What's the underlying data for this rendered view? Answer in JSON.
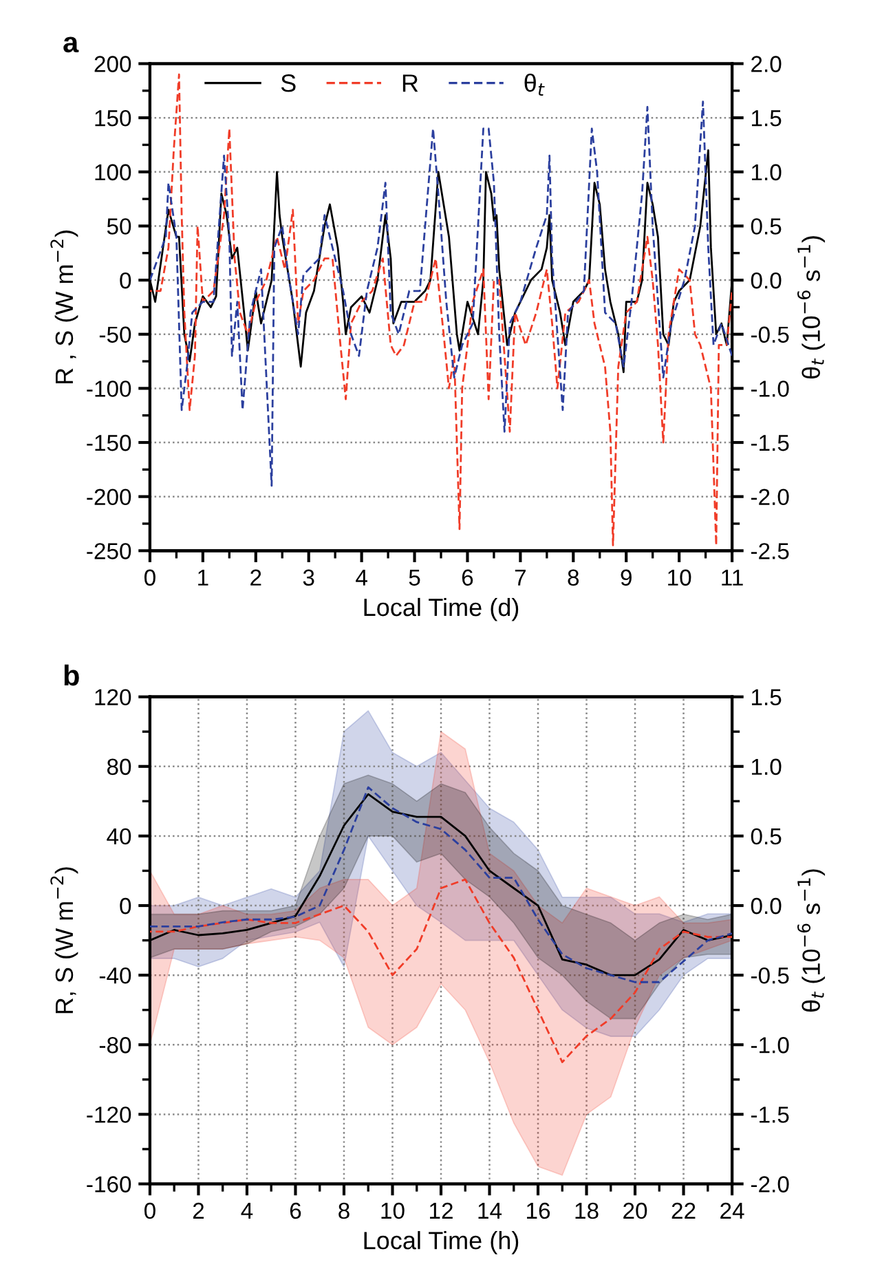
{
  "chart_data": [
    {
      "type": "line",
      "title": "a",
      "xlabel": "Local Time (d)",
      "ylabel": "R , S (W m$^{−2}$)",
      "y2label": "θ$_{t}$ (10$^{−6}$ s$^{−1}$)",
      "xlim": [
        0,
        11
      ],
      "xticks": [
        0,
        1,
        2,
        3,
        4,
        5,
        6,
        7,
        8,
        9,
        10,
        11
      ],
      "ylim": [
        -250,
        200
      ],
      "yticks": [
        -250,
        -200,
        -150,
        -100,
        -50,
        0,
        50,
        100,
        150,
        200
      ],
      "y2lim": [
        -2.5,
        2.0
      ],
      "y2ticks": [
        -2.5,
        {
          "value": -2,
          "label": "-2.0"
        },
        -1.5,
        {
          "value": -1,
          "label": "-1.0"
        },
        -0.5,
        {
          "value": 0,
          "label": "0.0"
        },
        0.5,
        {
          "value": 1,
          "label": "1.0"
        },
        1.5,
        {
          "value": 2,
          "label": "2.0"
        }
      ],
      "grid": "y",
      "legend": "top left",
      "marker": "none",
      "series": [
        {
          "name": "S",
          "color": "#000000",
          "line_style": "solid",
          "x": [
            0,
            0.1,
            0.35,
            0.5,
            0.55,
            0.65,
            0.75,
            0.85,
            1.0,
            1.15,
            1.25,
            1.35,
            1.45,
            1.55,
            1.65,
            1.8,
            1.85,
            2.0,
            2.1,
            2.2,
            2.3,
            2.35,
            2.4,
            2.45,
            2.5,
            2.6,
            2.7,
            2.8,
            2.85,
            2.95,
            3.1,
            3.3,
            3.4,
            3.55,
            3.65,
            3.7,
            3.8,
            4.0,
            4.15,
            4.3,
            4.45,
            4.55,
            4.6,
            4.75,
            5.0,
            5.2,
            5.3,
            5.45,
            5.55,
            5.65,
            5.8,
            5.85,
            6.0,
            6.2,
            6.3,
            6.35,
            6.45,
            6.5,
            6.55,
            6.6,
            6.75,
            6.9,
            7.0,
            7.2,
            7.4,
            7.5,
            7.55,
            7.6,
            7.75,
            7.85,
            8.0,
            8.2,
            8.3,
            8.4,
            8.5,
            8.6,
            8.7,
            8.85,
            8.95,
            9.0,
            9.2,
            9.3,
            9.4,
            9.5,
            9.6,
            9.7,
            9.8,
            9.9,
            10.0,
            10.2,
            10.4,
            10.55,
            10.6,
            10.7,
            10.8,
            10.9,
            11.0
          ],
          "values": [
            0,
            -20,
            65,
            40,
            40,
            -50,
            -75,
            -40,
            -15,
            -25,
            -15,
            80,
            60,
            20,
            30,
            -40,
            -65,
            -10,
            -40,
            -20,
            0,
            50,
            100,
            60,
            40,
            10,
            -20,
            -60,
            -80,
            -30,
            -10,
            50,
            70,
            30,
            -20,
            -50,
            -25,
            -15,
            -30,
            0,
            60,
            20,
            -40,
            -20,
            -20,
            -10,
            0,
            100,
            70,
            40,
            -50,
            -65,
            -20,
            -50,
            0,
            100,
            80,
            55,
            60,
            10,
            -60,
            -30,
            -20,
            0,
            10,
            30,
            60,
            0,
            -30,
            -60,
            -20,
            -10,
            0,
            90,
            70,
            10,
            -20,
            -50,
            -85,
            -20,
            -20,
            0,
            90,
            70,
            40,
            -50,
            -60,
            -20,
            -10,
            0,
            50,
            120,
            30,
            -50,
            -40,
            -60,
            0
          ]
        },
        {
          "name": "R",
          "color": "#f03c28",
          "line_style": "dashed",
          "x": [
            0,
            0.2,
            0.35,
            0.45,
            0.55,
            0.6,
            0.65,
            0.75,
            0.85,
            0.9,
            1.0,
            1.2,
            1.4,
            1.5,
            1.6,
            1.7,
            1.85,
            2.0,
            2.2,
            2.4,
            2.55,
            2.7,
            2.8,
            2.9,
            3.1,
            3.3,
            3.45,
            3.6,
            3.7,
            3.8,
            4.0,
            4.2,
            4.4,
            4.55,
            4.65,
            4.8,
            5.0,
            5.2,
            5.4,
            5.55,
            5.65,
            5.75,
            5.85,
            5.9,
            6.1,
            6.3,
            6.4,
            6.5,
            6.6,
            6.7,
            6.8,
            6.9,
            7.1,
            7.3,
            7.4,
            7.5,
            7.6,
            7.7,
            7.85,
            8.1,
            8.3,
            8.4,
            8.6,
            8.7,
            8.75,
            8.85,
            9.0,
            9.2,
            9.4,
            9.5,
            9.6,
            9.7,
            9.8,
            10.0,
            10.2,
            10.3,
            10.4,
            10.6,
            10.7,
            10.75,
            10.9,
            11.0
          ],
          "values": [
            -10,
            -10,
            30,
            120,
            190,
            60,
            -30,
            -120,
            -70,
            50,
            -20,
            -10,
            60,
            140,
            20,
            -30,
            -50,
            -20,
            0,
            40,
            10,
            65,
            -40,
            -10,
            0,
            20,
            20,
            -60,
            -110,
            -40,
            -20,
            -10,
            20,
            -60,
            -70,
            -60,
            -20,
            -20,
            20,
            -50,
            -100,
            -70,
            -230,
            -100,
            -20,
            10,
            -110,
            0,
            0,
            -70,
            -140,
            -30,
            -60,
            -30,
            -10,
            10,
            -40,
            -100,
            -30,
            -20,
            0,
            -40,
            -80,
            -140,
            -245,
            -80,
            -30,
            -20,
            40,
            0,
            -60,
            -150,
            -50,
            10,
            0,
            -50,
            -60,
            -100,
            -245,
            -60,
            -60,
            -10
          ]
        },
        {
          "name": "θ$_{t}$",
          "color": "#2b3f9e",
          "line_style": "dashed",
          "axis": "y2",
          "x": [
            0,
            0.3,
            0.35,
            0.5,
            0.6,
            0.7,
            0.8,
            1.0,
            1.2,
            1.4,
            1.5,
            1.55,
            1.65,
            1.75,
            1.9,
            2.1,
            2.3,
            2.35,
            2.5,
            2.6,
            2.8,
            2.9,
            3.2,
            3.3,
            3.5,
            3.65,
            3.8,
            3.95,
            4.1,
            4.3,
            4.45,
            4.55,
            4.7,
            4.9,
            5.1,
            5.35,
            5.45,
            5.6,
            5.75,
            5.9,
            6.1,
            6.3,
            6.4,
            6.5,
            6.6,
            6.7,
            6.8,
            7.0,
            7.3,
            7.5,
            7.55,
            7.6,
            7.8,
            7.9,
            8.2,
            8.35,
            8.45,
            8.6,
            8.8,
            8.95,
            9.1,
            9.3,
            9.4,
            9.5,
            9.7,
            9.85,
            10.1,
            10.3,
            10.45,
            10.55,
            10.65,
            10.8,
            11.0
          ],
          "values": [
            0,
            0.4,
            0.9,
            0.4,
            -1.2,
            -0.8,
            -0.3,
            -0.2,
            -0.2,
            1.15,
            0.4,
            -0.7,
            -0.2,
            -1.2,
            -0.3,
            0.1,
            -1.9,
            0.3,
            0.5,
            0.1,
            -0.5,
            0.05,
            0.2,
            0.6,
            0.2,
            -0.1,
            -0.5,
            -0.7,
            -0.1,
            0.3,
            0.9,
            -0.3,
            -0.5,
            -0.1,
            -0.1,
            1.4,
            0.8,
            -0.2,
            -0.9,
            -0.6,
            -0.4,
            1.4,
            1.4,
            0.9,
            -0.5,
            -1.4,
            -0.4,
            -0.2,
            0.3,
            0.6,
            1.15,
            0.2,
            -1.2,
            -0.3,
            -0.1,
            1.4,
            1.0,
            -0.3,
            -0.4,
            -0.8,
            -0.2,
            0.8,
            1.6,
            0.5,
            -0.9,
            -0.4,
            0.0,
            0.5,
            1.65,
            0.3,
            -0.6,
            -0.4,
            -0.7
          ]
        }
      ]
    },
    {
      "type": "line",
      "title": "b",
      "xlabel": "Local Time (h)",
      "ylabel": "R, S (W m$^{−2}$)",
      "y2label": "θ$_{t}$ (10$^{−6}$ s$^{−1}$)",
      "x": [
        0,
        1,
        2,
        3,
        4,
        5,
        6,
        7,
        8,
        9,
        10,
        11,
        12,
        13,
        14,
        15,
        16,
        17,
        18,
        19,
        20,
        21,
        22,
        23,
        24
      ],
      "xlim": [
        0,
        24
      ],
      "xticks": [
        0,
        2,
        4,
        6,
        8,
        10,
        12,
        14,
        16,
        18,
        20,
        22,
        24
      ],
      "ylim": [
        -160,
        120
      ],
      "yticks": [
        -160,
        -120,
        -80,
        -40,
        0,
        40,
        80,
        120
      ],
      "y2lim": [
        -2.0,
        1.5
      ],
      "y2ticks": [
        {
          "value": -2,
          "label": "-2.0"
        },
        -1.5,
        {
          "value": -1,
          "label": "-1.0"
        },
        -0.5,
        {
          "value": 0,
          "label": "0.0"
        },
        0.5,
        {
          "value": 1,
          "label": "1.0"
        },
        1.5
      ],
      "grid": true,
      "marker": "none",
      "series": [
        {
          "color": "#f03c28",
          "line_style": "dashed",
          "values": [
            -15,
            -15,
            -12,
            -10,
            -8,
            -10,
            -10,
            -5,
            0,
            -15,
            -40,
            -25,
            10,
            15,
            -10,
            -30,
            -60,
            -90,
            -75,
            -65,
            -50,
            -25,
            -15,
            -18,
            -18
          ],
          "upper": [
            20,
            -5,
            -5,
            0,
            -5,
            -5,
            -3,
            10,
            15,
            15,
            0,
            10,
            100,
            90,
            30,
            20,
            0,
            -10,
            10,
            5,
            0,
            5,
            -10,
            -10,
            -8
          ],
          "lower": [
            -80,
            -25,
            -25,
            -25,
            -22,
            -20,
            -18,
            -20,
            -30,
            -70,
            -80,
            -70,
            -45,
            -60,
            -90,
            -125,
            -150,
            -155,
            -120,
            -110,
            -70,
            -40,
            -30,
            -25,
            -20
          ]
        },
        {
          "color": "#2b3f9e",
          "line_style": "dashed",
          "axis": "y2",
          "values": [
            -0.15,
            -0.15,
            -0.15,
            -0.12,
            -0.1,
            -0.1,
            -0.08,
            0.0,
            0.4,
            0.85,
            0.7,
            0.6,
            0.55,
            0.4,
            0.2,
            0.2,
            -0.1,
            -0.35,
            -0.45,
            -0.5,
            -0.55,
            -0.55,
            -0.4,
            -0.25,
            -0.2
          ],
          "upper": [
            0,
            0,
            0.06,
            0,
            0.06,
            0.12,
            0.06,
            0.25,
            1.25,
            1.4,
            1.1,
            1.0,
            1.1,
            0.9,
            0.7,
            0.6,
            0.4,
            0.06,
            0.06,
            0.06,
            -0.06,
            -0.06,
            -0.12,
            -0.06,
            -0.06
          ],
          "lower": [
            -0.38,
            -0.38,
            -0.44,
            -0.38,
            -0.25,
            -0.22,
            -0.19,
            -0.12,
            -0.44,
            0.5,
            0.25,
            0,
            -0.12,
            -0.25,
            -0.25,
            -0.25,
            -0.5,
            -0.75,
            -0.88,
            -0.94,
            -0.94,
            -0.75,
            -0.5,
            -0.38,
            -0.38
          ]
        },
        {
          "color": "#000000",
          "line_style": "solid",
          "values": [
            -20,
            -14,
            -17,
            -16,
            -14,
            -10,
            -6,
            17,
            46,
            64,
            54,
            51,
            51,
            40,
            20,
            10,
            0,
            -31,
            -34,
            -40,
            -40,
            -31,
            -14,
            -20,
            -17
          ],
          "upper": [
            -5,
            -5,
            -5,
            -3,
            -3,
            -3,
            0,
            40,
            70,
            75,
            70,
            60,
            70,
            65,
            45,
            30,
            20,
            0,
            -5,
            -10,
            -20,
            -10,
            -5,
            -8,
            -5
          ],
          "lower": [
            -30,
            -25,
            -25,
            -25,
            -22,
            -15,
            -12,
            -5,
            10,
            40,
            40,
            25,
            30,
            15,
            5,
            -10,
            -30,
            -40,
            -55,
            -65,
            -65,
            -45,
            -30,
            -28,
            -28
          ]
        }
      ]
    }
  ]
}
